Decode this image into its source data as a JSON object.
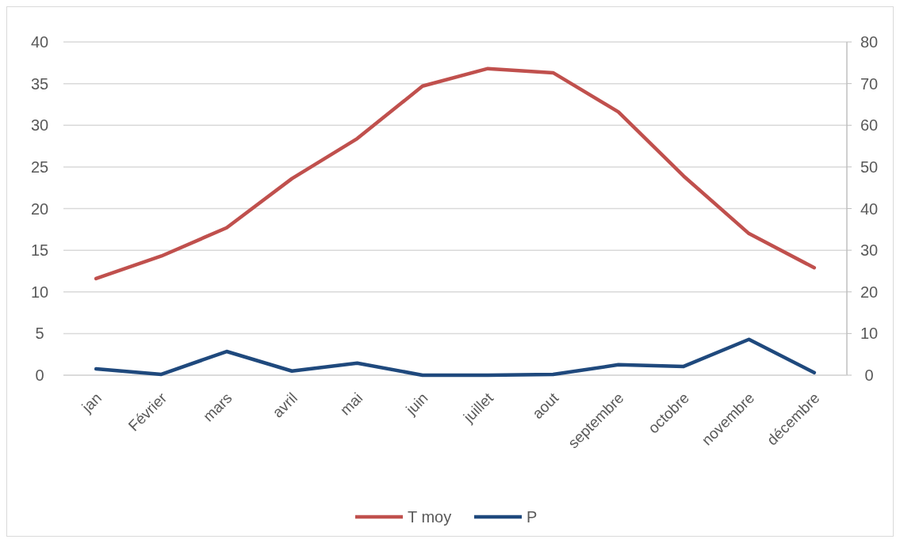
{
  "chart_data": {
    "type": "line",
    "categories": [
      "jan",
      "Février",
      "mars",
      "avril",
      "mai",
      "juin",
      "juillet",
      "aout",
      "septembre",
      "octobre",
      "novembre",
      "décembre"
    ],
    "series": [
      {
        "name": "T moy",
        "color": "#c0504d",
        "values": [
          11.6,
          14.3,
          17.7,
          23.6,
          28.4,
          34.7,
          36.8,
          36.3,
          31.6,
          23.9,
          17.0,
          12.9
        ]
      },
      {
        "name": "P",
        "color": "#1f497d",
        "axis": "y2",
        "values": [
          1.5,
          0.2,
          5.7,
          1,
          2.9,
          0,
          0,
          0.2,
          2.5,
          2.1,
          8.6,
          0.6
        ]
      }
    ],
    "ylim": [
      0,
      40
    ],
    "yticks": [
      0,
      5,
      10,
      15,
      20,
      25,
      30,
      35,
      40
    ],
    "y2lim": [
      0,
      80
    ],
    "y2ticks": [
      0,
      10,
      20,
      30,
      40,
      50,
      60,
      70,
      80
    ],
    "grid": "y",
    "legend": "bottom",
    "marker": "none",
    "line_style": "solid"
  }
}
